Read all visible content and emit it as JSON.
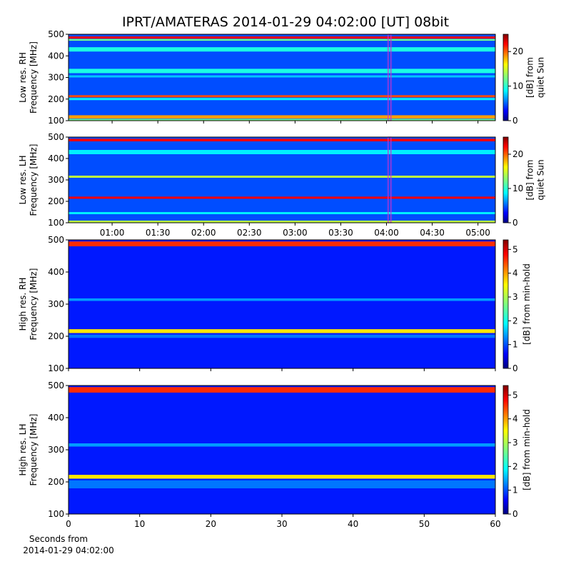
{
  "title": "IPRT/AMATERAS 2014-01-29 04:02:00 [UT]   08bit",
  "chart_data": [
    {
      "type": "heatmap",
      "ylabel": [
        "Low res. RH",
        "Frequency [MHz]"
      ],
      "ylim": [
        100,
        500
      ],
      "yticks": [
        100,
        200,
        300,
        400,
        500
      ],
      "xlim": [
        31.4,
        311.4
      ],
      "xticks": [
        {
          "value": 60,
          "label": "01:00"
        },
        {
          "value": 90,
          "label": "01:30"
        },
        {
          "value": 120,
          "label": "02:00"
        },
        {
          "value": 150,
          "label": "02:30"
        },
        {
          "value": 180,
          "label": "03:00"
        },
        {
          "value": 210,
          "label": "03:30"
        },
        {
          "value": 240,
          "label": "04:00"
        },
        {
          "value": 270,
          "label": "04:30"
        },
        {
          "value": 300,
          "label": "05:00"
        }
      ],
      "xticklabels": false,
      "marker_time": 242,
      "marker_color": "#cc33cc",
      "clabel": [
        "[dB] from",
        "quiet Sun"
      ],
      "clim": [
        0,
        25
      ],
      "cticks": [
        0,
        10,
        20
      ],
      "background": 5,
      "bands": [
        {
          "from": 480,
          "to": 490,
          "value": 22
        },
        {
          "from": 470,
          "to": 478,
          "value": 12
        },
        {
          "from": 420,
          "to": 440,
          "value": 10
        },
        {
          "from": 320,
          "to": 340,
          "value": 10
        },
        {
          "from": 300,
          "to": 310,
          "value": 8
        },
        {
          "from": 208,
          "to": 218,
          "value": 20
        },
        {
          "from": 195,
          "to": 205,
          "value": 9
        },
        {
          "from": 110,
          "to": 125,
          "value": 18
        },
        {
          "from": 100,
          "to": 108,
          "value": 12
        }
      ]
    },
    {
      "type": "heatmap",
      "ylabel": [
        "Low res. LH",
        "Frequency [MHz]"
      ],
      "ylim": [
        100,
        500
      ],
      "yticks": [
        100,
        200,
        300,
        400,
        500
      ],
      "xlim": [
        31.4,
        311.4
      ],
      "xticks": [
        {
          "value": 60,
          "label": "01:00"
        },
        {
          "value": 90,
          "label": "01:30"
        },
        {
          "value": 120,
          "label": "02:00"
        },
        {
          "value": 150,
          "label": "02:30"
        },
        {
          "value": 180,
          "label": "03:00"
        },
        {
          "value": 210,
          "label": "03:30"
        },
        {
          "value": 240,
          "label": "04:00"
        },
        {
          "value": 270,
          "label": "04:30"
        },
        {
          "value": 300,
          "label": "05:00"
        }
      ],
      "xticklabels": true,
      "marker_time": 242,
      "marker_color": "#cc33cc",
      "clabel": [
        "[dB] from",
        "quiet Sun"
      ],
      "clim": [
        0,
        25
      ],
      "cticks": [
        0,
        10,
        20
      ],
      "background": 5,
      "bands": [
        {
          "from": 480,
          "to": 492,
          "value": 22
        },
        {
          "from": 420,
          "to": 440,
          "value": 9
        },
        {
          "from": 310,
          "to": 320,
          "value": 14
        },
        {
          "from": 212,
          "to": 222,
          "value": 22
        },
        {
          "from": 140,
          "to": 150,
          "value": 9
        },
        {
          "from": 100,
          "to": 110,
          "value": 14
        }
      ]
    },
    {
      "type": "heatmap",
      "ylabel": [
        "High res. RH",
        "Frequency [MHz]"
      ],
      "ylim": [
        100,
        500
      ],
      "yticks": [
        100,
        200,
        300,
        400,
        500
      ],
      "xlim": [
        0,
        60
      ],
      "xticks": [
        0,
        10,
        20,
        30,
        40,
        50,
        60
      ],
      "xticklabels": false,
      "clabel": [
        "[dB] from min-hold"
      ],
      "clim": [
        0,
        5.4
      ],
      "cticks": [
        0,
        1,
        2,
        3,
        4,
        5
      ],
      "background": 0.8,
      "bands": [
        {
          "from": 480,
          "to": 495,
          "value": 4.5
        },
        {
          "from": 310,
          "to": 318,
          "value": 1.5
        },
        {
          "from": 210,
          "to": 222,
          "value": 3.5
        },
        {
          "from": 195,
          "to": 205,
          "value": 1.3
        }
      ]
    },
    {
      "type": "heatmap",
      "ylabel": [
        "High res. LH",
        "Frequency [MHz]"
      ],
      "ylim": [
        100,
        500
      ],
      "yticks": [
        100,
        200,
        300,
        400,
        500
      ],
      "xlim": [
        0,
        60
      ],
      "xticks": [
        0,
        10,
        20,
        30,
        40,
        50,
        60
      ],
      "xticklabels": true,
      "xlabel": [
        "Seconds from",
        "2014-01-29 04:02:00"
      ],
      "clabel": [
        "[dB] from min-hold"
      ],
      "clim": [
        0,
        5.4
      ],
      "cticks": [
        0,
        1,
        2,
        3,
        4,
        5
      ],
      "background": 0.8,
      "bands": [
        {
          "from": 478,
          "to": 495,
          "value": 4.5
        },
        {
          "from": 310,
          "to": 320,
          "value": 1.5
        },
        {
          "from": 210,
          "to": 222,
          "value": 3.5
        },
        {
          "from": 180,
          "to": 205,
          "value": 1.3
        }
      ]
    }
  ]
}
